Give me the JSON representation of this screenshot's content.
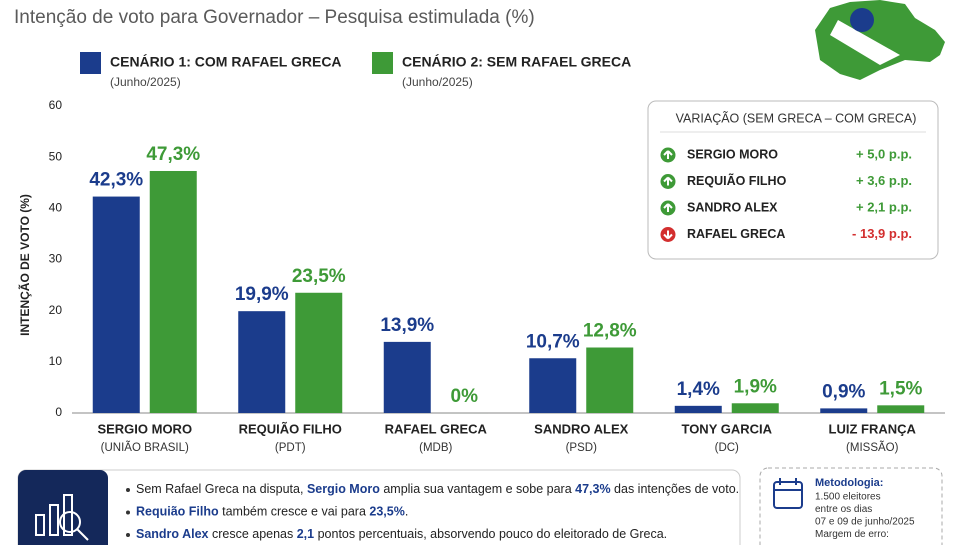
{
  "chart_data": {
    "type": "bar",
    "title": "Intenção de voto para Governador – Pesquisa estimulada (%)",
    "ylabel": "INTENÇÃO DE VOTO (%)",
    "categories": [
      "SERGIO MORO",
      "REQUIÃO FILHO",
      "RAFAEL GRECA",
      "SANDRO ALEX",
      "TONY GARCIA",
      "LUIZ FRANÇA"
    ],
    "category_parties": [
      "(UNIÃO BRASIL)",
      "(PDT)",
      "(MDB)",
      "(PSD)",
      "(DC)",
      "(MISSÃO)"
    ],
    "series": [
      {
        "name": "CENÁRIO 1: COM RAFAEL GRECA",
        "period": "(Junho/2025)",
        "color": "#1b3c8c",
        "values": [
          42.3,
          19.9,
          13.9,
          10.7,
          1.4,
          0.9
        ],
        "value_labels": [
          "42,3%",
          "19,9%",
          "13,9%",
          "10,7%",
          "1,4%",
          "0,9%"
        ]
      },
      {
        "name": "CENÁRIO 2: SEM RAFAEL GRECA",
        "period": "(Junho/2025)",
        "color": "#3e9a37",
        "values": [
          47.3,
          23.5,
          0,
          12.8,
          1.9,
          1.5
        ],
        "value_labels": [
          "47,3%",
          "23,5%",
          "0%",
          "12,8%",
          "1,9%",
          "1,5%"
        ]
      }
    ],
    "ylim": [
      0,
      60
    ],
    "yticks": [
      0,
      10,
      20,
      30,
      40,
      50,
      60
    ],
    "grid": false
  },
  "variation": {
    "title": "VARIAÇÃO (SEM GRECA – COM GRECA)",
    "rows": [
      {
        "name": "SERGIO MORO",
        "change": "+ 5,0 p.p.",
        "trend": "up"
      },
      {
        "name": "REQUIÃO FILHO",
        "change": "+ 3,6 p.p.",
        "trend": "up"
      },
      {
        "name": "SANDRO ALEX",
        "change": "+ 2,1 p.p.",
        "trend": "up"
      },
      {
        "name": "RAFAEL GRECA",
        "change": "- 13,9 p.p.",
        "trend": "down"
      }
    ]
  },
  "notes": [
    [
      {
        "text": "Sem Rafael Greca na disputa, "
      },
      {
        "text": "Sergio Moro",
        "bold": true
      },
      {
        "text": " amplia sua vantagem e sobe para "
      },
      {
        "text": "47,3%",
        "bold": true
      },
      {
        "text": " das intenções de voto."
      }
    ],
    [
      {
        "text": "Requião Filho",
        "bold": true
      },
      {
        "text": " também cresce e vai para "
      },
      {
        "text": "23,5%",
        "bold": true
      },
      {
        "text": "."
      }
    ],
    [
      {
        "text": "Sandro Alex",
        "bold": true
      },
      {
        "text": " cresce apenas "
      },
      {
        "text": "2,1",
        "bold": true
      },
      {
        "text": " pontos percentuais, absorvendo pouco do eleitorado de Greca."
      }
    ]
  ],
  "methodology": {
    "title": "Metodologia:",
    "lines": [
      "1.500 eleitores",
      "entre os dias",
      "07 e 09 de junho/2025",
      "Margem de erro:"
    ]
  }
}
